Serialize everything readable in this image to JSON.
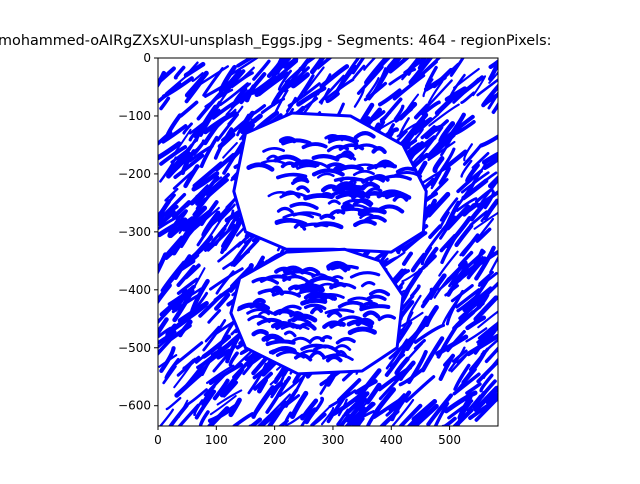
{
  "chart_data": {
    "type": "scatter",
    "title": "mohammed-oAIRgZXsXUI-unsplash_Eggs.jpg - Segments: 464 - regionPixels:",
    "xlabel": "",
    "ylabel": "",
    "xlim": [
      0,
      583
    ],
    "ylim": [
      -635,
      0
    ],
    "xticks": [
      0,
      100,
      200,
      300,
      400,
      500
    ],
    "yticks": [
      0,
      -100,
      -200,
      -300,
      -400,
      -500,
      -600
    ],
    "grid": false,
    "legend": "none",
    "colors": {
      "segments": "#0000ff",
      "axes": "#000000"
    },
    "series": [
      {
        "segment_count": 464,
        "description_shapes": {
          "egg_top_outline": [
            [
              150,
              -130
            ],
            [
              230,
              -95
            ],
            [
              330,
              -100
            ],
            [
              420,
              -150
            ],
            [
              460,
              -230
            ],
            [
              455,
              -300
            ],
            [
              400,
              -335
            ],
            [
              300,
              -330
            ],
            [
              220,
              -330
            ],
            [
              150,
              -300
            ],
            [
              130,
              -230
            ]
          ],
          "egg_bottom_outline": [
            [
              140,
              -380
            ],
            [
              220,
              -335
            ],
            [
              320,
              -330
            ],
            [
              380,
              -350
            ],
            [
              420,
              -410
            ],
            [
              410,
              -500
            ],
            [
              350,
              -540
            ],
            [
              240,
              -545
            ],
            [
              150,
              -500
            ],
            [
              125,
              -440
            ]
          ]
        }
      }
    ]
  }
}
